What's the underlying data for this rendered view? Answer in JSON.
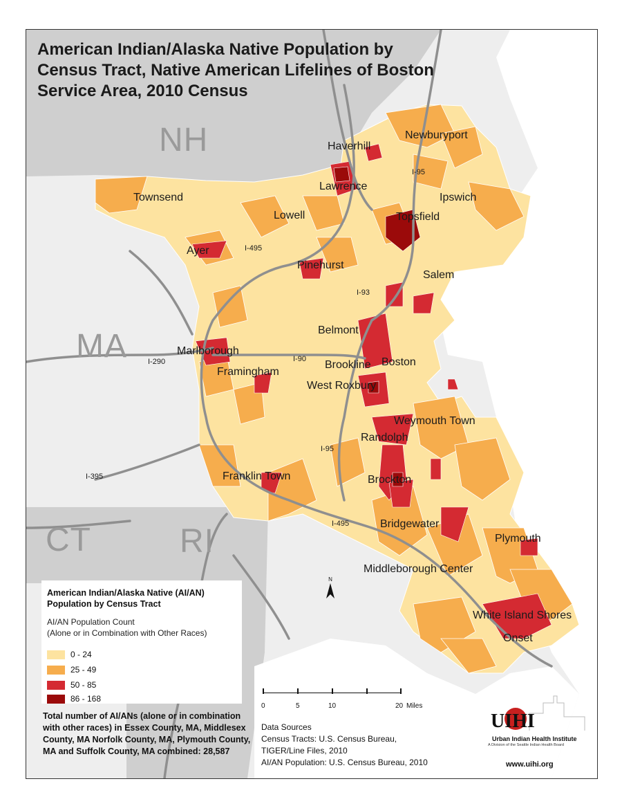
{
  "title": "American Indian/Alaska Native Population by\nCensus Tract, Native American Lifelines of Boston\nService Area, 2010 Census",
  "colors": {
    "class_0_24": "#fde3a0",
    "class_25_49": "#f6ad4d",
    "class_50_85": "#d42a32",
    "class_86_168": "#9b0a0a",
    "other_land": "#d2d2d2",
    "background_land": "#eeeeee",
    "water": "#ffffff",
    "highway": "#8f8f8f"
  },
  "states": [
    {
      "id": "nh",
      "label": "NH"
    },
    {
      "id": "ma",
      "label": "MA"
    },
    {
      "id": "ct",
      "label": "CT"
    },
    {
      "id": "ri",
      "label": "RI"
    }
  ],
  "places": [
    "Haverhill",
    "Newburyport",
    "Lawrence",
    "Townsend",
    "Ipswich",
    "Lowell",
    "Topsfield",
    "Ayer",
    "Pinehurst",
    "Salem",
    "Belmont",
    "Marlborough",
    "Boston",
    "Brookline",
    "Framingham",
    "West Roxbury",
    "Weymouth Town",
    "Randolph",
    "Franklin Town",
    "Brockton",
    "Bridgewater",
    "Plymouth",
    "Middleborough Center",
    "White Island Shores",
    "Onset"
  ],
  "highways": [
    "I-95",
    "I-495",
    "I-93",
    "I-290",
    "I-90",
    "I-95",
    "I-395",
    "I-495"
  ],
  "legend": {
    "title": "American Indian/Alaska Native (AI/AN) Population by Census Tract",
    "subtitle": "AI/AN Population Count\n(Alone or in Combination with Other Races)",
    "classes": [
      {
        "label": "0 - 24",
        "color": "#fde3a0"
      },
      {
        "label": "25 - 49",
        "color": "#f6ad4d"
      },
      {
        "label": "50 - 85",
        "color": "#d42a32"
      },
      {
        "label": "86 - 168",
        "color": "#9b0a0a"
      }
    ]
  },
  "total_text": "Total number of AI/ANs (alone or in combination with other races) in Essex County, MA, Middlesex County, MA Norfolk County, MA, Plymouth County, MA and Suffolk County, MA combined: 28,587",
  "scale": {
    "ticks": [
      "0",
      "5",
      "10",
      "20"
    ],
    "units": "Miles"
  },
  "north_label": "N",
  "sources": {
    "heading": "Data Sources",
    "line1": "Census Tracts: U.S. Census Bureau,",
    "line2": "TIGER/Line Files, 2010",
    "line3": "AI/AN Population: U.S. Census Bureau, 2010"
  },
  "logo": {
    "mark": "UIHI",
    "name": "Urban Indian Health Institute",
    "tagline": "A Division of the Seattle Indian Health Board"
  },
  "website": "www.uihi.org"
}
